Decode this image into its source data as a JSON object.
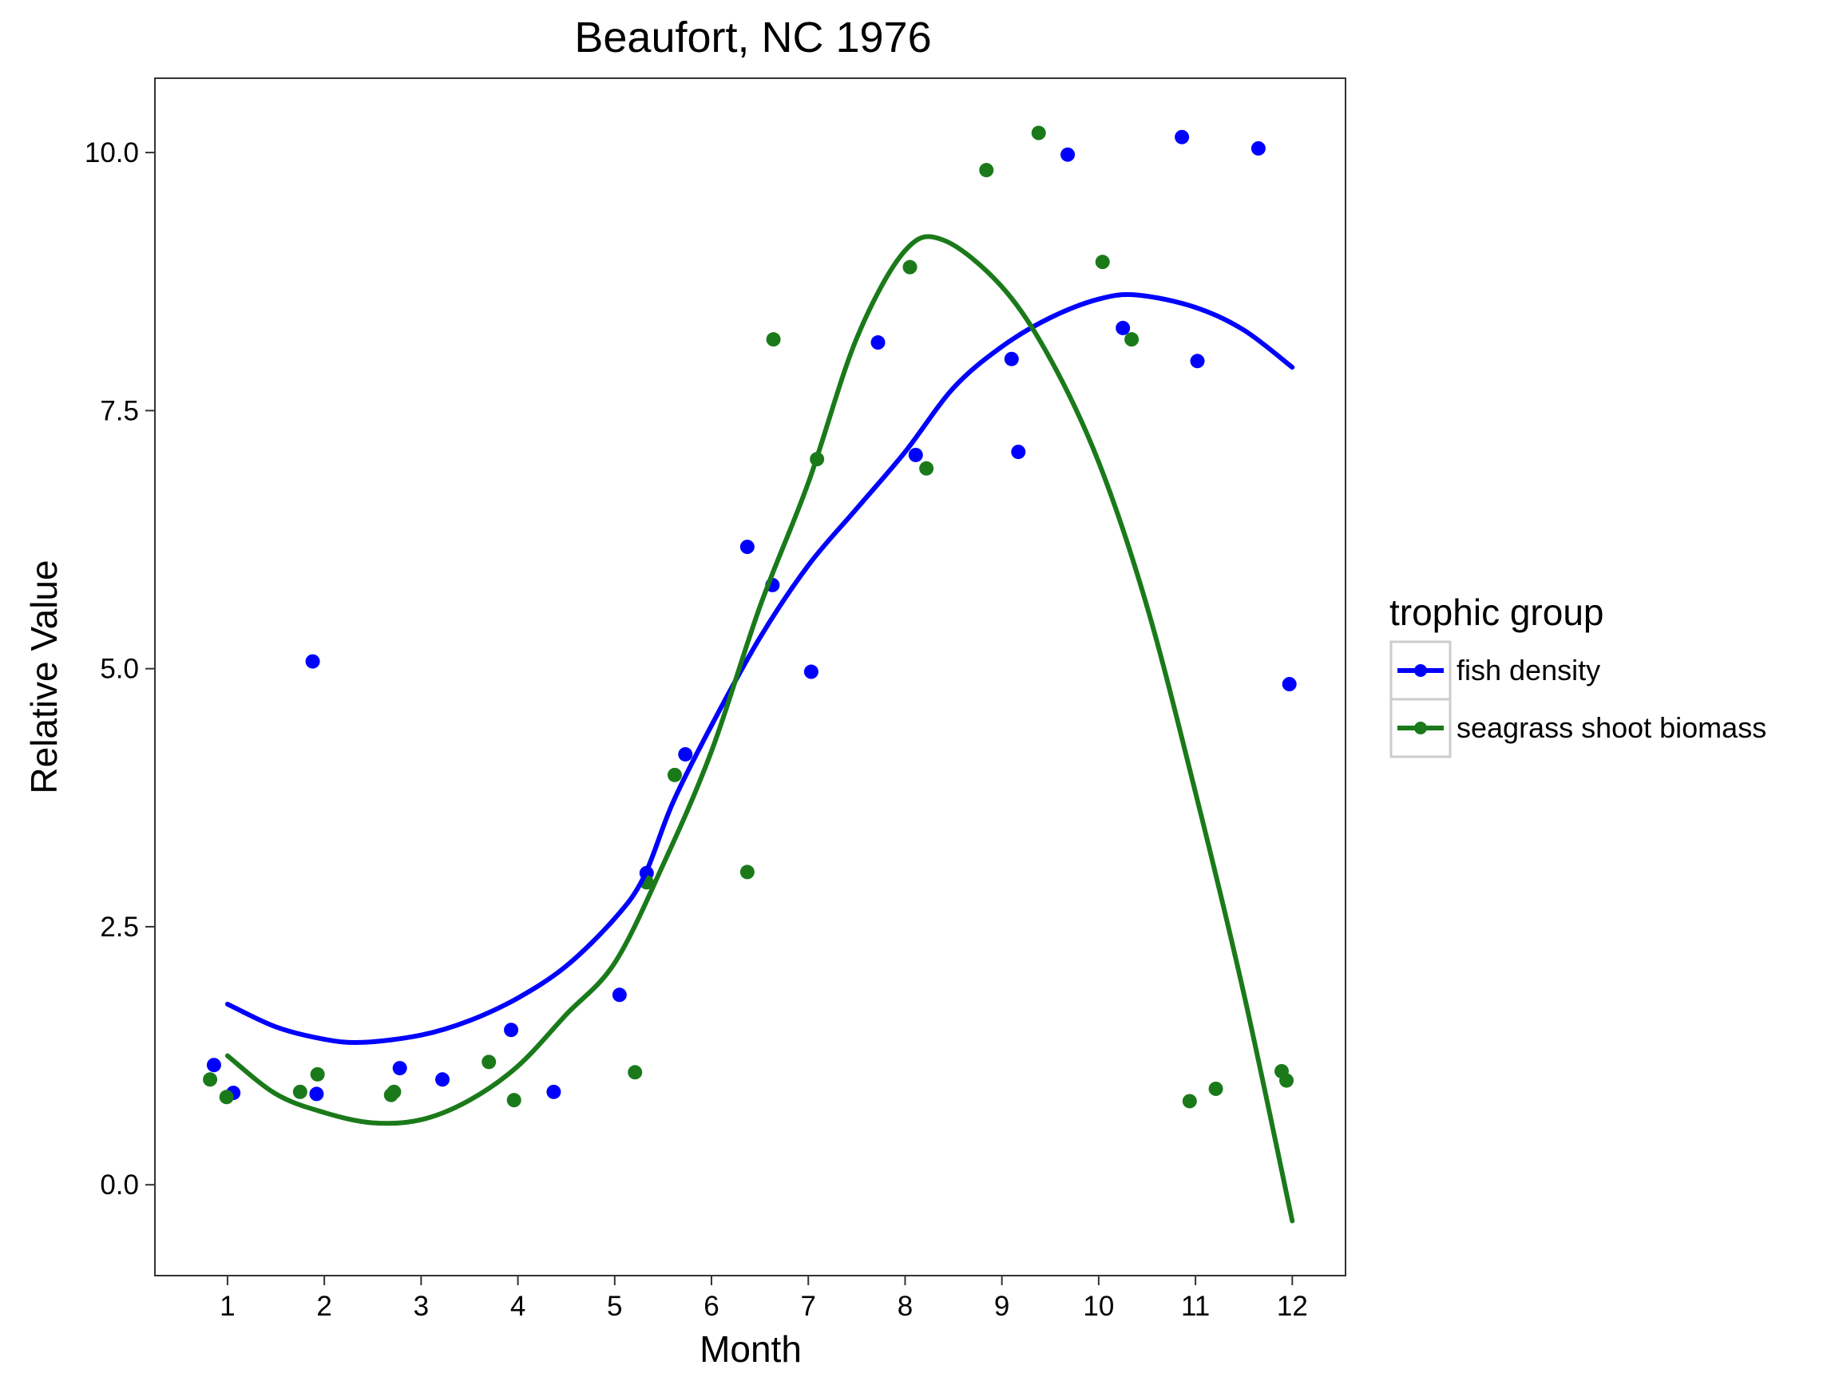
{
  "chart_data": {
    "type": "scatter",
    "title": "Beaufort, NC 1976",
    "xlabel": "Month",
    "ylabel": "Relative Value",
    "xlim": [
      0.25,
      12.55
    ],
    "ylim": [
      -0.88,
      10.72
    ],
    "x_ticks": [
      1,
      2,
      3,
      4,
      5,
      6,
      7,
      8,
      9,
      10,
      11,
      12
    ],
    "x_tick_labels": [
      "1",
      "2",
      "3",
      "4",
      "5",
      "6",
      "7",
      "8",
      "9",
      "10",
      "11",
      "12"
    ],
    "y_ticks": [
      0,
      2.5,
      5,
      7.5,
      10
    ],
    "y_tick_labels": [
      "0.0",
      "2.5",
      "5.0",
      "7.5",
      "10.0"
    ],
    "grid": false,
    "legend": {
      "title": "trophic group",
      "position": "right"
    },
    "series": [
      {
        "name": "fish density",
        "color": "#0000ff",
        "points": [
          [
            0.86,
            1.16
          ],
          [
            1.06,
            0.89
          ],
          [
            1.88,
            5.07
          ],
          [
            1.92,
            0.88
          ],
          [
            2.78,
            1.13
          ],
          [
            3.22,
            1.02
          ],
          [
            3.93,
            1.5
          ],
          [
            4.37,
            0.9
          ],
          [
            5.05,
            1.84
          ],
          [
            5.33,
            3.02
          ],
          [
            5.73,
            4.17
          ],
          [
            6.37,
            6.18
          ],
          [
            6.63,
            5.81
          ],
          [
            7.03,
            4.97
          ],
          [
            7.72,
            8.16
          ],
          [
            8.11,
            7.07
          ],
          [
            9.1,
            8.0
          ],
          [
            9.17,
            7.1
          ],
          [
            9.68,
            9.98
          ],
          [
            10.25,
            8.3
          ],
          [
            10.86,
            10.15
          ],
          [
            11.02,
            7.98
          ],
          [
            11.65,
            10.04
          ],
          [
            11.97,
            4.85
          ]
        ],
        "smooth": [
          [
            1.0,
            1.75
          ],
          [
            1.5,
            1.53
          ],
          [
            2.0,
            1.41
          ],
          [
            2.4,
            1.38
          ],
          [
            3.0,
            1.45
          ],
          [
            3.5,
            1.59
          ],
          [
            4.0,
            1.81
          ],
          [
            4.5,
            2.12
          ],
          [
            5.0,
            2.58
          ],
          [
            5.3,
            2.98
          ],
          [
            5.6,
            3.7
          ],
          [
            6.0,
            4.45
          ],
          [
            6.5,
            5.3
          ],
          [
            7.0,
            6.0
          ],
          [
            7.5,
            6.55
          ],
          [
            8.0,
            7.1
          ],
          [
            8.5,
            7.72
          ],
          [
            9.0,
            8.12
          ],
          [
            9.5,
            8.4
          ],
          [
            10.0,
            8.58
          ],
          [
            10.4,
            8.62
          ],
          [
            11.0,
            8.5
          ],
          [
            11.5,
            8.28
          ],
          [
            12.0,
            7.92
          ]
        ]
      },
      {
        "name": "seagrass shoot biomass",
        "color": "#1a7a1a",
        "points": [
          [
            0.82,
            1.02
          ],
          [
            0.99,
            0.85
          ],
          [
            1.75,
            0.9
          ],
          [
            1.93,
            1.07
          ],
          [
            2.69,
            0.87
          ],
          [
            2.72,
            0.9
          ],
          [
            3.7,
            1.19
          ],
          [
            3.96,
            0.82
          ],
          [
            5.21,
            1.09
          ],
          [
            5.33,
            2.93
          ],
          [
            5.62,
            3.97
          ],
          [
            6.37,
            3.03
          ],
          [
            6.64,
            8.19
          ],
          [
            7.09,
            7.03
          ],
          [
            8.05,
            8.89
          ],
          [
            8.22,
            6.94
          ],
          [
            8.84,
            9.83
          ],
          [
            9.38,
            10.19
          ],
          [
            10.04,
            8.94
          ],
          [
            10.34,
            8.19
          ],
          [
            10.94,
            0.81
          ],
          [
            11.21,
            0.93
          ],
          [
            11.89,
            1.1
          ],
          [
            11.94,
            1.01
          ]
        ],
        "smooth": [
          [
            1.0,
            1.25
          ],
          [
            1.5,
            0.88
          ],
          [
            2.0,
            0.7
          ],
          [
            2.5,
            0.6
          ],
          [
            3.0,
            0.63
          ],
          [
            3.5,
            0.82
          ],
          [
            4.0,
            1.15
          ],
          [
            4.5,
            1.65
          ],
          [
            5.0,
            2.15
          ],
          [
            5.5,
            3.1
          ],
          [
            6.0,
            4.2
          ],
          [
            6.5,
            5.6
          ],
          [
            7.0,
            6.8
          ],
          [
            7.5,
            8.2
          ],
          [
            8.0,
            9.05
          ],
          [
            8.4,
            9.15
          ],
          [
            9.0,
            8.7
          ],
          [
            9.5,
            8.0
          ],
          [
            10.0,
            7.0
          ],
          [
            10.5,
            5.6
          ],
          [
            11.0,
            3.8
          ],
          [
            11.5,
            1.85
          ],
          [
            12.0,
            -0.35
          ]
        ]
      }
    ]
  }
}
